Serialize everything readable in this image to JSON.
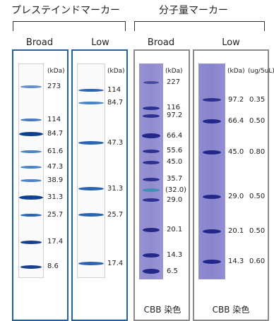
{
  "titles": {
    "prestained": "プレステインドマーカー",
    "molecular": "分子量マーカー"
  },
  "columns": [
    {
      "label": "Broad",
      "unit": "(kDa)",
      "bands": [
        {
          "label": "273",
          "kda": 273
        },
        {
          "label": "114",
          "kda": 114
        },
        {
          "label": "84.7",
          "kda": 84.7
        },
        {
          "label": "61.6",
          "kda": 61.6
        },
        {
          "label": "47.3",
          "kda": 47.3
        },
        {
          "label": "38.9",
          "kda": 38.9
        },
        {
          "label": "31.3",
          "kda": 31.3
        },
        {
          "label": "25.7",
          "kda": 25.7
        },
        {
          "label": "17.4",
          "kda": 17.4
        },
        {
          "label": "8.6",
          "kda": 8.6
        }
      ]
    },
    {
      "label": "Low",
      "unit": "(kDa)",
      "bands": [
        {
          "label": "114",
          "kda": 114
        },
        {
          "label": "84.7",
          "kda": 84.7
        },
        {
          "label": "47.3",
          "kda": 47.3
        },
        {
          "label": "31.3",
          "kda": 31.3
        },
        {
          "label": "25.7",
          "kda": 25.7
        },
        {
          "label": "17.4",
          "kda": 17.4
        }
      ]
    },
    {
      "label": "Broad",
      "unit": "(kDa)",
      "caption": "CBB 染色",
      "bands": [
        {
          "label": "227",
          "kda": 227
        },
        {
          "label": "116",
          "kda": 116
        },
        {
          "label": "97.2",
          "kda": 97.2
        },
        {
          "label": "66.4",
          "kda": 66.4
        },
        {
          "label": "55.6",
          "kda": 55.6
        },
        {
          "label": "45.0",
          "kda": 45.0
        },
        {
          "label": "35.7",
          "kda": 35.7
        },
        {
          "label": "(32.0)",
          "kda": 32.0
        },
        {
          "label": "29.0",
          "kda": 29.0
        },
        {
          "label": "20.1",
          "kda": 20.1
        },
        {
          "label": "14.3",
          "kda": 14.3
        },
        {
          "label": "6.5",
          "kda": 6.5
        }
      ]
    },
    {
      "label": "Low",
      "unit": "(kDa)",
      "unit2": "(ug/5uL)",
      "caption": "CBB 染色",
      "bands": [
        {
          "label": "97.2",
          "kda": 97.2,
          "amount": "0.35"
        },
        {
          "label": "66.4",
          "kda": 66.4,
          "amount": "0.50"
        },
        {
          "label": "45.0",
          "kda": 45.0,
          "amount": "0.80"
        },
        {
          "label": "29.0",
          "kda": 29.0,
          "amount": "0.50"
        },
        {
          "label": "20.1",
          "kda": 20.1,
          "amount": "0.50"
        },
        {
          "label": "14.3",
          "kda": 14.3,
          "amount": "0.60"
        }
      ]
    }
  ],
  "colors": {
    "frame_blue": "#1e62a8",
    "frame_gray": "#8c8c8c",
    "prestained_band": "#1b56a8",
    "cbb_band": "#2b2f8f",
    "cbb_gel": "#8f8bcf",
    "special_band": "#3f8fb2"
  }
}
